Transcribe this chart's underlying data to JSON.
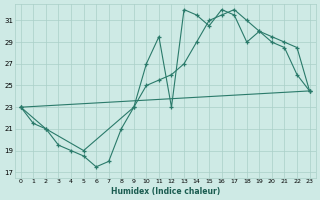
{
  "xlabel": "Humidex (Indice chaleur)",
  "xlim": [
    -0.5,
    23.5
  ],
  "ylim": [
    16.5,
    32.5
  ],
  "yticks": [
    17,
    19,
    21,
    23,
    25,
    27,
    29,
    31
  ],
  "xticks": [
    0,
    1,
    2,
    3,
    4,
    5,
    6,
    7,
    8,
    9,
    10,
    11,
    12,
    13,
    14,
    15,
    16,
    17,
    18,
    19,
    20,
    21,
    22,
    23
  ],
  "line_color": "#2a7a6a",
  "bg_color": "#ceeae5",
  "grid_color": "#aacfc8",
  "lines": [
    {
      "x": [
        0,
        1,
        2,
        3,
        4,
        5,
        6,
        7,
        8,
        9,
        10,
        11,
        12,
        13,
        14,
        15,
        16,
        17,
        18,
        19,
        20,
        21,
        22,
        23
      ],
      "y": [
        23,
        21.5,
        21,
        19.5,
        19,
        18.5,
        17.5,
        18.0,
        21,
        23,
        27,
        29.5,
        23,
        32,
        31.5,
        30.5,
        32,
        31.5,
        29,
        30,
        29,
        28.5,
        26,
        24.5
      ]
    },
    {
      "x": [
        0,
        2,
        5,
        9,
        10,
        11,
        12,
        13,
        14,
        15,
        16,
        17,
        18,
        19,
        20,
        21,
        22,
        23
      ],
      "y": [
        23,
        21,
        19,
        23,
        25,
        25.5,
        26,
        27,
        29,
        31,
        31.5,
        32,
        31,
        30,
        29.5,
        29,
        28.5,
        24.5
      ]
    },
    {
      "x": [
        0,
        23
      ],
      "y": [
        23,
        24.5
      ]
    }
  ]
}
